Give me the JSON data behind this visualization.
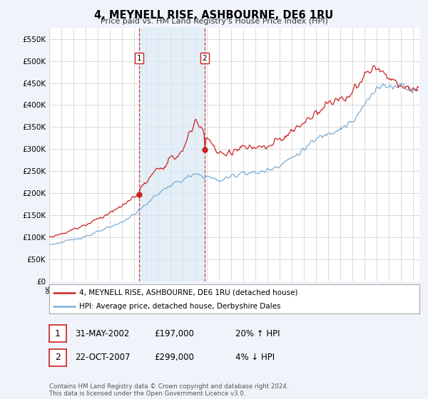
{
  "title": "4, MEYNELL RISE, ASHBOURNE, DE6 1RU",
  "subtitle": "Price paid vs. HM Land Registry's House Price Index (HPI)",
  "hpi_color": "#7aadd4",
  "price_color": "#cc2222",
  "dashed_color": "#cc2222",
  "shade_color": "#d8e8f5",
  "background_color": "#f0f4fa",
  "plot_bg": "#ffffff",
  "ylim": [
    0,
    575000
  ],
  "yticks": [
    0,
    50000,
    100000,
    150000,
    200000,
    250000,
    300000,
    350000,
    400000,
    450000,
    500000,
    550000
  ],
  "transaction1_x": 2002.42,
  "transaction1_y": 197000,
  "transaction2_x": 2007.81,
  "transaction2_y": 299000,
  "legend_line1": "4, MEYNELL RISE, ASHBOURNE, DE6 1RU (detached house)",
  "legend_line2": "HPI: Average price, detached house, Derbyshire Dales",
  "table_row1": [
    "1",
    "31-MAY-2002",
    "£197,000",
    "20% ↑ HPI"
  ],
  "table_row2": [
    "2",
    "22-OCT-2007",
    "£299,000",
    "4% ↓ HPI"
  ],
  "footer": "Contains HM Land Registry data © Crown copyright and database right 2024.\nThis data is licensed under the Open Government Licence v3.0.",
  "xmin": 1995.0,
  "xmax": 2025.5
}
